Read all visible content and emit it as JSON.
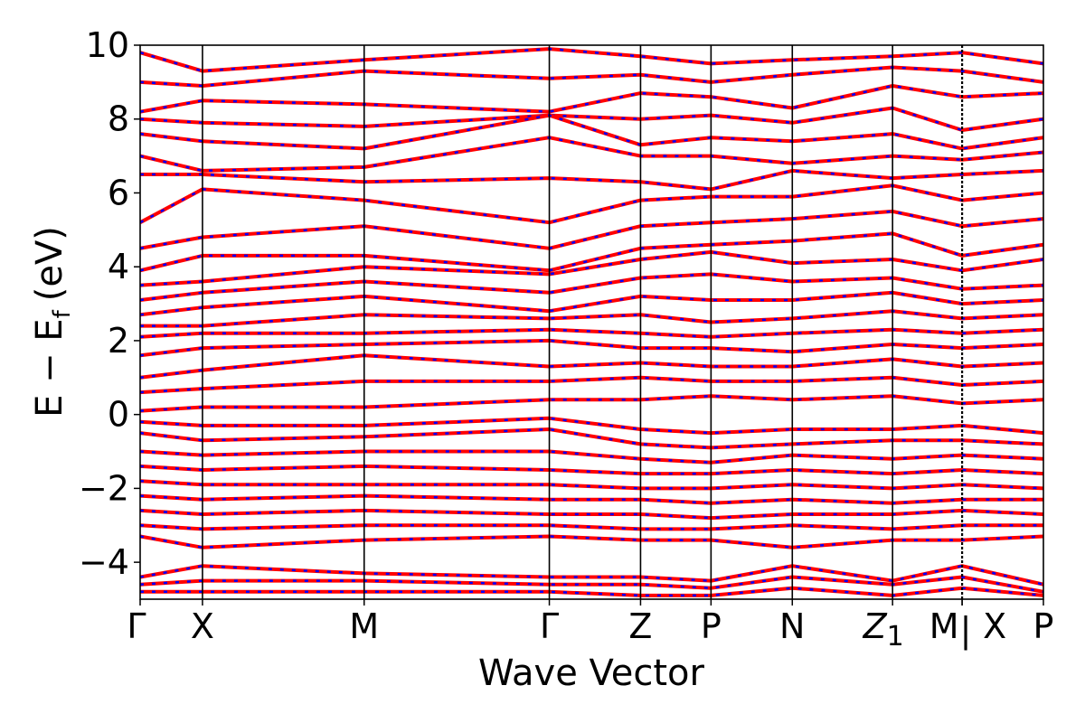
{
  "chart_data": {
    "type": "line",
    "title": "",
    "xlabel": "Wave Vector",
    "ylabel": "E − E",
    "ylabel_subscript": "f",
    "ylabel_unit": "(eV)",
    "ylim": [
      -5,
      10
    ],
    "yticks": [
      -4,
      -2,
      0,
      2,
      4,
      6,
      8,
      10
    ],
    "ytick_labels": [
      "−4",
      "−2",
      "0",
      "2",
      "4",
      "6",
      "8",
      "10"
    ],
    "grid": false,
    "legend": "none",
    "high_symmetry_points": [
      {
        "label": "Γ",
        "k": 0.0
      },
      {
        "label": "X",
        "k": 0.069
      },
      {
        "label": "M",
        "k": 0.248
      },
      {
        "label": "Γ",
        "k": 0.453
      },
      {
        "label": "Z",
        "k": 0.554
      },
      {
        "label": "P",
        "k": 0.632
      },
      {
        "label": "N",
        "k": 0.722
      },
      {
        "label": "Z",
        "label_subscript": "1",
        "k": 0.833
      },
      {
        "label": "M",
        "k": 0.91
      },
      {
        "label": "X",
        "k": 0.91
      },
      {
        "label": "P",
        "k": 1.0
      }
    ],
    "path_break_k": 0.91,
    "xlim": [
      0.0,
      1.0
    ],
    "band_representation": {
      "solid_color": "#ff0000",
      "dashed_color": "#0000ff",
      "style": "red solid bands overlaid with blue dashed bands (two nearly identical calculations)"
    },
    "series": [
      {
        "color_role": "conduction",
        "k": [
          0,
          0.069,
          0.248,
          0.453,
          0.554,
          0.632,
          0.722,
          0.833,
          0.91,
          1.0
        ],
        "E": [
          9.8,
          9.3,
          9.6,
          9.9,
          9.7,
          9.5,
          9.6,
          9.7,
          9.8,
          9.5
        ]
      },
      {
        "color_role": "conduction",
        "k": [
          0,
          0.069,
          0.248,
          0.453,
          0.554,
          0.632,
          0.722,
          0.833,
          0.91,
          1.0
        ],
        "E": [
          9.0,
          8.9,
          9.3,
          9.1,
          9.2,
          9.0,
          9.2,
          9.4,
          9.3,
          9.0
        ]
      },
      {
        "color_role": "conduction",
        "k": [
          0,
          0.069,
          0.248,
          0.453,
          0.554,
          0.632,
          0.722,
          0.833,
          0.91,
          1.0
        ],
        "E": [
          8.2,
          8.5,
          8.4,
          8.2,
          8.7,
          8.6,
          8.3,
          8.9,
          8.6,
          8.7
        ]
      },
      {
        "color_role": "conduction",
        "k": [
          0,
          0.069,
          0.248,
          0.453,
          0.554,
          0.632,
          0.722,
          0.833,
          0.91,
          1.0
        ],
        "E": [
          8.0,
          7.9,
          7.8,
          8.1,
          8.0,
          8.1,
          7.9,
          8.3,
          7.7,
          8.0
        ]
      },
      {
        "color_role": "conduction",
        "k": [
          0,
          0.069,
          0.248,
          0.453,
          0.554,
          0.632,
          0.722,
          0.833,
          0.91,
          1.0
        ],
        "E": [
          7.6,
          7.4,
          7.2,
          8.1,
          7.3,
          7.5,
          7.4,
          7.6,
          7.2,
          7.5
        ]
      },
      {
        "color_role": "conduction",
        "k": [
          0,
          0.069,
          0.248,
          0.453,
          0.554,
          0.632,
          0.722,
          0.833,
          0.91,
          1.0
        ],
        "E": [
          7.0,
          6.6,
          6.7,
          7.5,
          7.0,
          7.0,
          6.8,
          7.0,
          6.9,
          7.1
        ]
      },
      {
        "color_role": "conduction",
        "k": [
          0,
          0.069,
          0.248,
          0.453,
          0.554,
          0.632,
          0.722,
          0.833,
          0.91,
          1.0
        ],
        "E": [
          6.5,
          6.5,
          6.3,
          6.4,
          6.3,
          6.1,
          6.6,
          6.4,
          6.5,
          6.6
        ]
      },
      {
        "color_role": "conduction",
        "k": [
          0,
          0.069,
          0.248,
          0.453,
          0.554,
          0.632,
          0.722,
          0.833,
          0.91,
          1.0
        ],
        "E": [
          5.2,
          6.1,
          5.8,
          5.2,
          5.8,
          5.9,
          5.9,
          6.2,
          5.8,
          6.0
        ]
      },
      {
        "color_role": "conduction",
        "k": [
          0,
          0.069,
          0.248,
          0.453,
          0.554,
          0.632,
          0.722,
          0.833,
          0.91,
          1.0
        ],
        "E": [
          4.5,
          4.8,
          5.1,
          4.5,
          5.1,
          5.2,
          5.3,
          5.5,
          5.1,
          5.3
        ]
      },
      {
        "color_role": "conduction",
        "k": [
          0,
          0.069,
          0.248,
          0.453,
          0.554,
          0.632,
          0.722,
          0.833,
          0.91,
          1.0
        ],
        "E": [
          3.9,
          4.3,
          4.3,
          3.9,
          4.5,
          4.6,
          4.7,
          4.9,
          4.3,
          4.6
        ]
      },
      {
        "color_role": "conduction",
        "k": [
          0,
          0.069,
          0.248,
          0.453,
          0.554,
          0.632,
          0.722,
          0.833,
          0.91,
          1.0
        ],
        "E": [
          3.5,
          3.6,
          4.0,
          3.8,
          4.2,
          4.4,
          4.1,
          4.2,
          3.9,
          4.2
        ]
      },
      {
        "color_role": "conduction",
        "k": [
          0,
          0.069,
          0.248,
          0.453,
          0.554,
          0.632,
          0.722,
          0.833,
          0.91,
          1.0
        ],
        "E": [
          3.1,
          3.3,
          3.6,
          3.3,
          3.7,
          3.8,
          3.6,
          3.7,
          3.4,
          3.5
        ]
      },
      {
        "color_role": "conduction",
        "k": [
          0,
          0.069,
          0.248,
          0.453,
          0.554,
          0.632,
          0.722,
          0.833,
          0.91,
          1.0
        ],
        "E": [
          2.7,
          2.9,
          3.2,
          2.8,
          3.2,
          3.1,
          3.1,
          3.3,
          3.0,
          3.1
        ]
      },
      {
        "color_role": "conduction",
        "k": [
          0,
          0.069,
          0.248,
          0.453,
          0.554,
          0.632,
          0.722,
          0.833,
          0.91,
          1.0
        ],
        "E": [
          2.4,
          2.4,
          2.7,
          2.6,
          2.7,
          2.5,
          2.6,
          2.8,
          2.6,
          2.7
        ]
      },
      {
        "color_role": "conduction",
        "k": [
          0,
          0.069,
          0.248,
          0.453,
          0.554,
          0.632,
          0.722,
          0.833,
          0.91,
          1.0
        ],
        "E": [
          2.1,
          2.2,
          2.2,
          2.3,
          2.2,
          2.1,
          2.2,
          2.3,
          2.2,
          2.3
        ]
      },
      {
        "color_role": "conduction",
        "k": [
          0,
          0.069,
          0.248,
          0.453,
          0.554,
          0.632,
          0.722,
          0.833,
          0.91,
          1.0
        ],
        "E": [
          1.6,
          1.8,
          1.9,
          2.0,
          1.8,
          1.8,
          1.7,
          1.9,
          1.8,
          1.9
        ]
      },
      {
        "color_role": "conduction",
        "k": [
          0,
          0.069,
          0.248,
          0.453,
          0.554,
          0.632,
          0.722,
          0.833,
          0.91,
          1.0
        ],
        "E": [
          1.0,
          1.2,
          1.6,
          1.3,
          1.4,
          1.3,
          1.3,
          1.5,
          1.3,
          1.4
        ]
      },
      {
        "color_role": "conduction",
        "k": [
          0,
          0.069,
          0.248,
          0.453,
          0.554,
          0.632,
          0.722,
          0.833,
          0.91,
          1.0
        ],
        "E": [
          0.6,
          0.7,
          0.9,
          0.9,
          1.0,
          0.9,
          0.9,
          1.0,
          0.8,
          0.9
        ]
      },
      {
        "color_role": "conduction",
        "k": [
          0,
          0.069,
          0.248,
          0.453,
          0.554,
          0.632,
          0.722,
          0.833,
          0.91,
          1.0
        ],
        "E": [
          0.1,
          0.2,
          0.2,
          0.4,
          0.4,
          0.5,
          0.4,
          0.5,
          0.3,
          0.4
        ]
      },
      {
        "color_role": "valence",
        "k": [
          0,
          0.069,
          0.248,
          0.453,
          0.554,
          0.632,
          0.722,
          0.833,
          0.91,
          1.0
        ],
        "E": [
          -0.2,
          -0.3,
          -0.3,
          -0.1,
          -0.4,
          -0.5,
          -0.4,
          -0.4,
          -0.3,
          -0.5
        ]
      },
      {
        "color_role": "valence",
        "k": [
          0,
          0.069,
          0.248,
          0.453,
          0.554,
          0.632,
          0.722,
          0.833,
          0.91,
          1.0
        ],
        "E": [
          -0.5,
          -0.7,
          -0.6,
          -0.4,
          -0.8,
          -0.9,
          -0.8,
          -0.7,
          -0.7,
          -0.8
        ]
      },
      {
        "color_role": "valence",
        "k": [
          0,
          0.069,
          0.248,
          0.453,
          0.554,
          0.632,
          0.722,
          0.833,
          0.91,
          1.0
        ],
        "E": [
          -1.0,
          -1.1,
          -1.0,
          -1.0,
          -1.2,
          -1.3,
          -1.1,
          -1.2,
          -1.1,
          -1.2
        ]
      },
      {
        "color_role": "valence",
        "k": [
          0,
          0.069,
          0.248,
          0.453,
          0.554,
          0.632,
          0.722,
          0.833,
          0.91,
          1.0
        ],
        "E": [
          -1.4,
          -1.5,
          -1.4,
          -1.5,
          -1.6,
          -1.6,
          -1.5,
          -1.6,
          -1.5,
          -1.6
        ]
      },
      {
        "color_role": "valence",
        "k": [
          0,
          0.069,
          0.248,
          0.453,
          0.554,
          0.632,
          0.722,
          0.833,
          0.91,
          1.0
        ],
        "E": [
          -1.8,
          -1.9,
          -1.9,
          -1.9,
          -2.0,
          -2.0,
          -1.9,
          -2.0,
          -1.9,
          -2.0
        ]
      },
      {
        "color_role": "valence",
        "k": [
          0,
          0.069,
          0.248,
          0.453,
          0.554,
          0.632,
          0.722,
          0.833,
          0.91,
          1.0
        ],
        "E": [
          -2.2,
          -2.3,
          -2.2,
          -2.3,
          -2.3,
          -2.4,
          -2.3,
          -2.4,
          -2.3,
          -2.3
        ]
      },
      {
        "color_role": "valence",
        "k": [
          0,
          0.069,
          0.248,
          0.453,
          0.554,
          0.632,
          0.722,
          0.833,
          0.91,
          1.0
        ],
        "E": [
          -2.6,
          -2.7,
          -2.6,
          -2.7,
          -2.7,
          -2.8,
          -2.7,
          -2.7,
          -2.6,
          -2.7
        ]
      },
      {
        "color_role": "valence",
        "k": [
          0,
          0.069,
          0.248,
          0.453,
          0.554,
          0.632,
          0.722,
          0.833,
          0.91,
          1.0
        ],
        "E": [
          -3.0,
          -3.1,
          -3.0,
          -3.0,
          -3.1,
          -3.1,
          -3.0,
          -3.1,
          -3.0,
          -3.0
        ]
      },
      {
        "color_role": "valence",
        "k": [
          0,
          0.069,
          0.248,
          0.453,
          0.554,
          0.632,
          0.722,
          0.833,
          0.91,
          1.0
        ],
        "E": [
          -3.3,
          -3.6,
          -3.4,
          -3.3,
          -3.4,
          -3.4,
          -3.6,
          -3.4,
          -3.4,
          -3.3
        ]
      },
      {
        "color_role": "semicore",
        "k": [
          0,
          0.069,
          0.248,
          0.453,
          0.554,
          0.632,
          0.722,
          0.833,
          0.91,
          1.0
        ],
        "E": [
          -4.4,
          -4.1,
          -4.3,
          -4.4,
          -4.4,
          -4.5,
          -4.1,
          -4.5,
          -4.1,
          -4.6
        ]
      },
      {
        "color_role": "semicore",
        "k": [
          0,
          0.069,
          0.248,
          0.453,
          0.554,
          0.632,
          0.722,
          0.833,
          0.91,
          1.0
        ],
        "E": [
          -4.6,
          -4.5,
          -4.5,
          -4.6,
          -4.6,
          -4.7,
          -4.4,
          -4.6,
          -4.4,
          -4.8
        ]
      },
      {
        "color_role": "semicore",
        "k": [
          0,
          0.069,
          0.248,
          0.453,
          0.554,
          0.632,
          0.722,
          0.833,
          0.91,
          1.0
        ],
        "E": [
          -4.8,
          -4.8,
          -4.8,
          -4.8,
          -4.9,
          -4.9,
          -4.7,
          -4.9,
          -4.7,
          -4.9
        ]
      }
    ]
  }
}
